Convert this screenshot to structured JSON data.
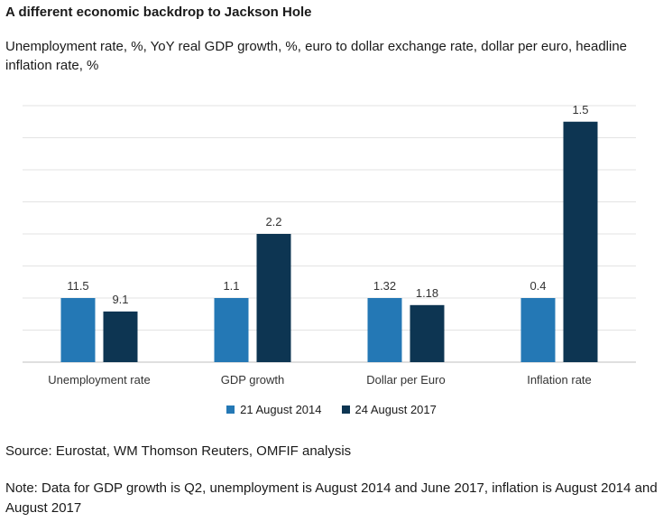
{
  "header": {
    "title": "A different economic backdrop to Jackson Hole",
    "subtitle": "Unemployment rate, %, YoY real GDP growth, %, euro to dollar exchange rate, dollar per euro, headline inflation rate, %"
  },
  "footer": {
    "source": "Source: Eurostat, WM Thomson Reuters, OMFIF analysis",
    "note": "Note: Data for GDP growth is Q2, unemployment is August 2014 and June 2017, inflation is August 2014 and August 2017"
  },
  "chart_data": {
    "type": "bar",
    "categories": [
      "Unemployment rate",
      "GDP growth",
      "Dollar per Euro",
      "Inflation rate"
    ],
    "series": [
      {
        "name": "21 August 2014",
        "color": "#2478b5",
        "values": [
          11.5,
          1.1,
          1.32,
          0.4
        ],
        "labels": [
          "11.5",
          "1.1",
          "1.32",
          "0.4"
        ],
        "relative_height": [
          1,
          1,
          1,
          1
        ]
      },
      {
        "name": "24 August 2017",
        "color": "#0d3552",
        "values": [
          9.1,
          2.2,
          1.18,
          1.5
        ],
        "labels": [
          "9.1",
          "2.2",
          "1.18",
          "1.5"
        ],
        "relative_height": [
          0.79,
          2.0,
          0.89,
          3.75
        ]
      }
    ],
    "normalization_note_hidden": "",
    "grid": true,
    "legend_position": "bottom"
  }
}
